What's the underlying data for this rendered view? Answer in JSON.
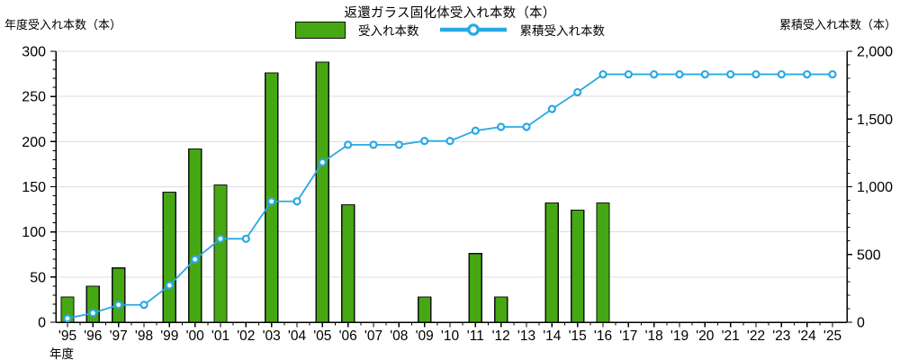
{
  "header": {
    "title": "返還ガラス固化体受入れ本数（本）",
    "left_axis_title": "年度受入れ本数（本）",
    "right_axis_title": "累積受入れ本数（本）",
    "x_axis_title": "年度"
  },
  "legend": {
    "bar_label": "受入れ本数",
    "line_label": "累積受入れ本数"
  },
  "colors": {
    "bar_fill": "#45A813",
    "bar_stroke": "#111111",
    "line": "#29A9E2",
    "marker_fill": "#FFFFFF",
    "grid": "#DCDCDC",
    "axis": "#000000"
  },
  "chart_data": {
    "type": "bar+line",
    "title": "返還ガラス固化体受入れ本数（本）",
    "xlabel": "年度",
    "ylabel_left": "年度受入れ本数（本）",
    "ylabel_right": "累積受入れ本数（本）",
    "grid": "horizontal",
    "legend_position": "top",
    "categories": [
      "'95",
      "'96",
      "'97",
      "'98",
      "'99",
      "'00",
      "'01",
      "'02",
      "'03",
      "'04",
      "'05",
      "'06",
      "'07",
      "'08",
      "'09",
      "'10",
      "'11",
      "'12",
      "'13",
      "'14",
      "'15",
      "'16",
      "'17",
      "'18",
      "'19",
      "'20",
      "'21",
      "'22",
      "'23",
      "'24",
      "'25"
    ],
    "series": [
      {
        "name": "受入れ本数",
        "type": "bar",
        "yaxis": "left",
        "values": [
          28,
          40,
          60,
          0,
          144,
          192,
          152,
          0,
          276,
          0,
          288,
          130,
          0,
          0,
          28,
          0,
          76,
          28,
          0,
          132,
          124,
          132,
          0,
          0,
          0,
          0,
          0,
          0,
          0,
          0,
          0
        ]
      },
      {
        "name": "累積受入れ本数",
        "type": "line",
        "yaxis": "right",
        "values": [
          28,
          68,
          128,
          128,
          272,
          464,
          616,
          616,
          892,
          892,
          1180,
          1310,
          1310,
          1310,
          1338,
          1338,
          1414,
          1442,
          1442,
          1574,
          1698,
          1830,
          1830,
          1830,
          1830,
          1830,
          1830,
          1830,
          1830,
          1830,
          1830
        ]
      }
    ],
    "left_axis": {
      "min": 0,
      "max": 300,
      "major_ticks": [
        0,
        50,
        100,
        150,
        200,
        250,
        300
      ],
      "major_tick_labels": [
        "0",
        "50",
        "100",
        "150",
        "200",
        "250",
        "300"
      ],
      "minor_step": 10
    },
    "right_axis": {
      "min": 0,
      "max": 2000,
      "major_ticks": [
        0,
        500,
        1000,
        1500,
        2000
      ],
      "major_tick_labels": [
        "0",
        "500",
        "1,000",
        "1,500",
        "2,000"
      ],
      "minor_step": 100
    }
  }
}
